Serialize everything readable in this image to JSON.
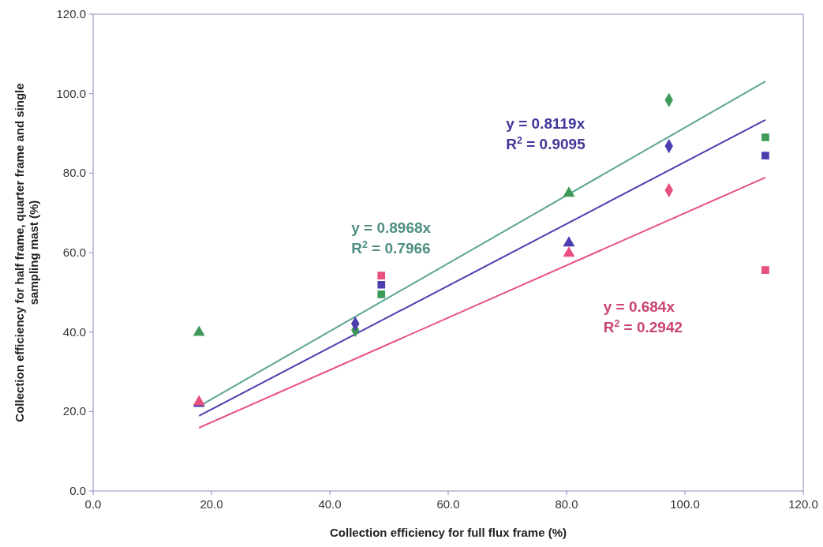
{
  "chart_data": {
    "type": "scatter",
    "xlabel": "Collection efficiency for full flux frame (%)",
    "ylabel": "Collection efficiency for half frame, quarter frame  and single sampling mast (%)",
    "xlim": [
      0,
      120
    ],
    "ylim": [
      0,
      120
    ],
    "xticks": [
      {
        "value": 0,
        "label": "0.0"
      },
      {
        "value": 20,
        "label": "20.0"
      },
      {
        "value": 40,
        "label": "40.0"
      },
      {
        "value": 60,
        "label": "60.0"
      },
      {
        "value": 80,
        "label": "80.0"
      },
      {
        "value": 100,
        "label": "100.0"
      },
      {
        "value": 120,
        "label": "120.0"
      }
    ],
    "yticks": [
      {
        "value": 0,
        "label": "0.0"
      },
      {
        "value": 20,
        "label": "20.0"
      },
      {
        "value": 40,
        "label": "40.0"
      },
      {
        "value": 60,
        "label": "60.0"
      },
      {
        "value": 80,
        "label": "80.0"
      },
      {
        "value": 100,
        "label": "100.0"
      },
      {
        "value": 120,
        "label": "120.0"
      }
    ],
    "grid": false,
    "series": [
      {
        "type": "line",
        "color": "#5aa595",
        "x": [
          17.9,
          113.6
        ],
        "values": [
          21.3,
          103.1
        ]
      },
      {
        "type": "line",
        "color": "#4b3fb0",
        "x": [
          17.9,
          113.6
        ],
        "values": [
          18.9,
          93.4
        ]
      },
      {
        "type": "line",
        "color": "#e8507f",
        "x": [
          17.9,
          113.6
        ],
        "values": [
          15.9,
          78.9
        ]
      },
      {
        "marker": "triangle",
        "x": [
          17.9,
          17.9,
          17.9
        ],
        "values": [
          39.9,
          22.0,
          22.4
        ],
        "colors": [
          "#3f9a5a",
          "#4b3fb0",
          "#e8507f"
        ]
      },
      {
        "marker": "diamond",
        "x": [
          44.3,
          44.3
        ],
        "values": [
          40.5,
          42.1
        ],
        "colors": [
          "#3f9a5a",
          "#4b3fb0"
        ]
      },
      {
        "marker": "square",
        "x": [
          48.7,
          48.7,
          48.7
        ],
        "values": [
          49.5,
          51.9,
          54.2
        ],
        "colors": [
          "#3f9a5a",
          "#4b3fb0",
          "#e8507f"
        ]
      },
      {
        "marker": "triangle",
        "x": [
          80.4,
          80.4,
          80.4
        ],
        "values": [
          74.9,
          62.4,
          59.8
        ],
        "colors": [
          "#3f9a5a",
          "#4b3fb0",
          "#e8507f"
        ]
      },
      {
        "marker": "diamond",
        "x": [
          97.3,
          97.3,
          97.3
        ],
        "values": [
          98.4,
          86.8,
          75.7
        ],
        "colors": [
          "#3f9a5a",
          "#4b3fb0",
          "#e8507f"
        ]
      },
      {
        "marker": "square",
        "x": [
          113.6,
          113.6,
          113.6
        ],
        "values": [
          89.0,
          84.4,
          55.6
        ],
        "colors": [
          "#3f9a5a",
          "#4b3fb0",
          "#e8507f"
        ]
      }
    ],
    "annotations": [
      "y = 0.8968x\nR$^{2}$ = 0.7966",
      "y = 0.8119x\nR$^{2}$ = 0.9095",
      "y = 0.684x\nR$^{2}$ = 0.2942"
    ]
  }
}
